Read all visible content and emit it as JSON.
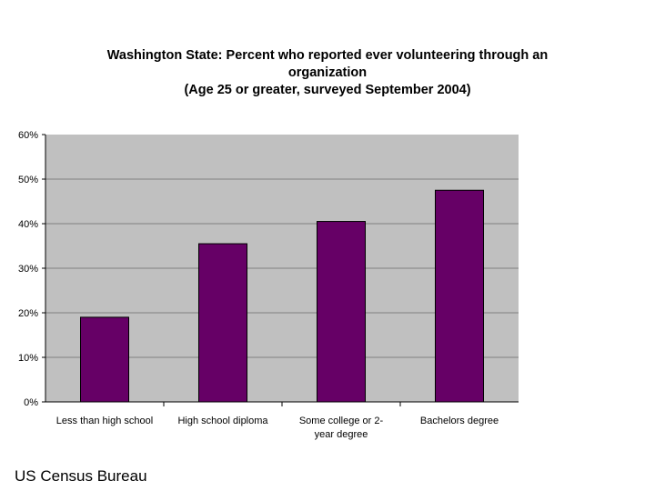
{
  "chart_data": {
    "type": "bar",
    "title_lines": [
      "Washington State: Percent who reported ever volunteering through an",
      "organization",
      "(Age 25 or greater, surveyed September 2004)"
    ],
    "categories": [
      [
        "Less than high school"
      ],
      [
        "High school diploma"
      ],
      [
        "Some college or 2-",
        "year degree"
      ],
      [
        "Bachelors degree"
      ]
    ],
    "values": [
      19,
      35.5,
      40.5,
      47.5
    ],
    "yticks": [
      "0%",
      "10%",
      "20%",
      "30%",
      "40%",
      "50%",
      "60%"
    ],
    "ylim": [
      0,
      60
    ],
    "grid": true,
    "bar_color": "#660066",
    "plot_background": "#c0c0c0",
    "gridline_color": "#808080"
  },
  "source": "US Census Bureau"
}
